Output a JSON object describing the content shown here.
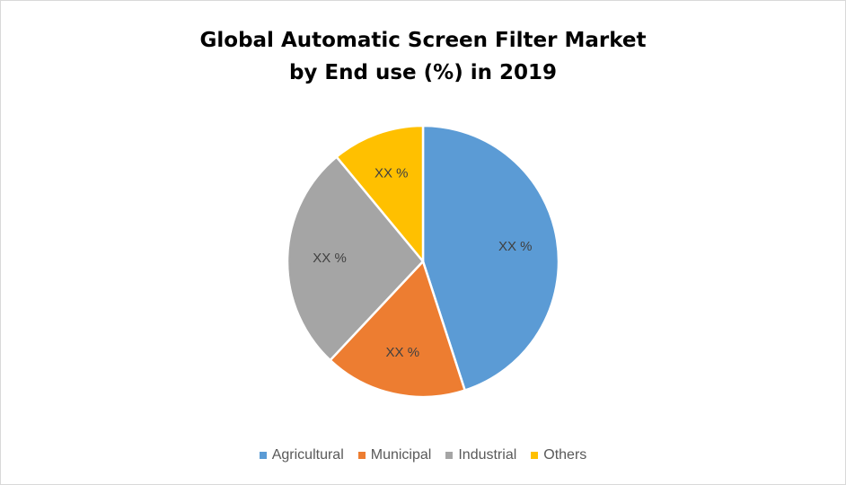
{
  "chart_data": {
    "type": "pie",
    "title": [
      "Global Automatic Screen Filter Market",
      "by End use (%) in 2019"
    ],
    "categories": [
      "Agricultural",
      "Municipal",
      "Industrial",
      "Others"
    ],
    "values": [
      45,
      17,
      27,
      11
    ],
    "data_labels": [
      "XX %",
      "XX %",
      "XX %",
      "XX %"
    ],
    "colors": [
      "#5B9BD5",
      "#ED7D31",
      "#A5A5A5",
      "#FFC000"
    ],
    "legend_position": "bottom",
    "start_angle": "top, clockwise"
  }
}
